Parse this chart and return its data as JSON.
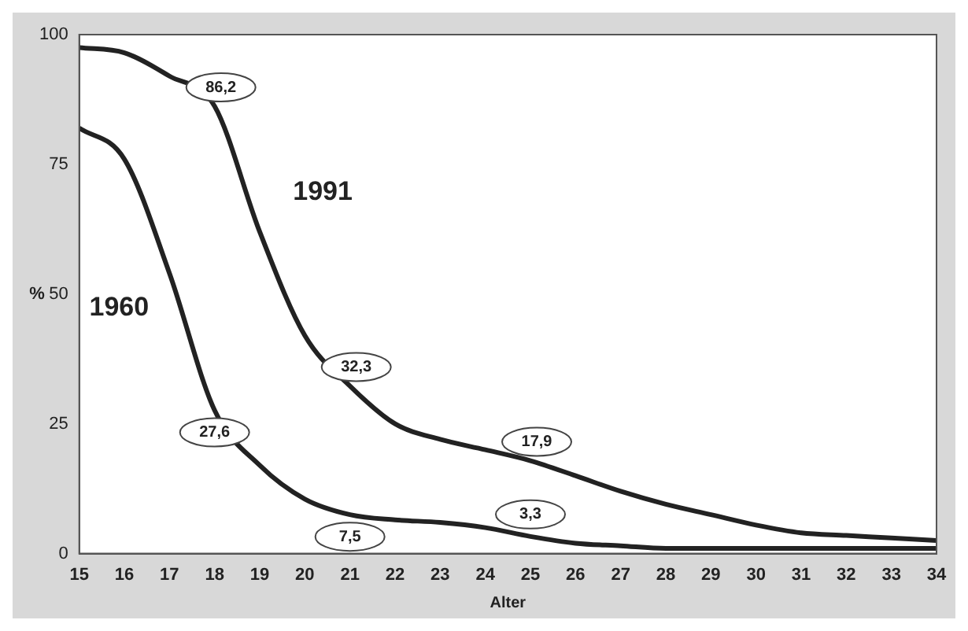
{
  "chart_data": {
    "type": "line",
    "xlabel": "Alter",
    "ylabel": "%",
    "x": [
      15,
      16,
      17,
      18,
      19,
      20,
      21,
      22,
      23,
      24,
      25,
      26,
      27,
      28,
      29,
      30,
      31,
      32,
      33,
      34
    ],
    "series": [
      {
        "name": "1991",
        "color": "#222222",
        "values": [
          97.5,
          96.5,
          92,
          86.2,
          62,
          42,
          32.3,
          25,
          22,
          20,
          17.9,
          15,
          12,
          9.5,
          7.5,
          5.5,
          4,
          3.5,
          3,
          2.5
        ],
        "value_labels": [
          null,
          null,
          null,
          "86,2",
          null,
          null,
          "32,3",
          null,
          null,
          null,
          "17,9",
          null,
          null,
          null,
          null,
          null,
          null,
          null,
          null,
          null
        ]
      },
      {
        "name": "1960",
        "color": "#222222",
        "values": [
          82,
          76,
          54,
          27.6,
          17,
          10.5,
          7.5,
          6.5,
          6,
          5,
          3.3,
          2,
          1.5,
          1,
          1,
          1,
          1,
          1,
          1,
          1
        ],
        "value_labels": [
          null,
          null,
          null,
          "27,6",
          null,
          null,
          "7,5",
          null,
          null,
          null,
          "3,3",
          null,
          null,
          null,
          null,
          null,
          null,
          null,
          null,
          null
        ]
      }
    ],
    "xlim": [
      15,
      34
    ],
    "xticks": [
      15,
      16,
      17,
      18,
      19,
      20,
      21,
      22,
      23,
      24,
      25,
      26,
      27,
      28,
      29,
      30,
      31,
      32,
      33,
      34
    ],
    "ylim": [
      0,
      100
    ],
    "yticks": [
      0,
      25,
      50,
      75,
      100
    ],
    "grid": false,
    "legend": false,
    "marker": "none",
    "line_style": "solid"
  }
}
